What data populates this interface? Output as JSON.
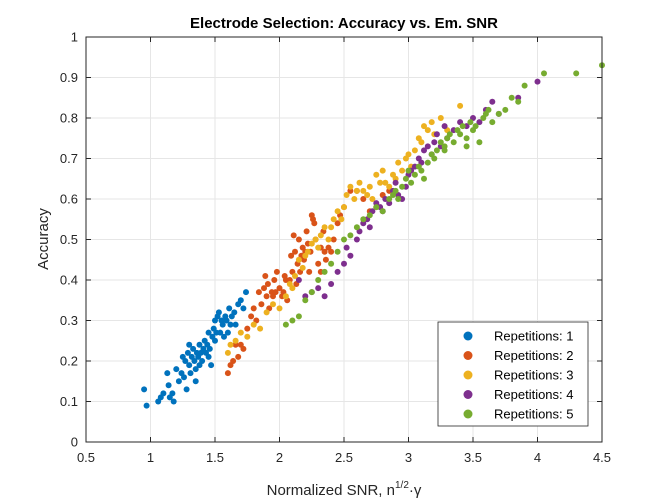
{
  "chart_data": {
    "type": "scatter",
    "title": "Electrode Selection: Accuracy vs. Em. SNR",
    "xlabel_main": "Normalized SNR, n",
    "xlabel_sup": "1/2",
    "xlabel_tail": "·γ",
    "ylabel": "Accuracy",
    "xlim": [
      0.5,
      4.5
    ],
    "ylim": [
      0,
      1
    ],
    "xticks": [
      "0.5",
      "1",
      "1.5",
      "2",
      "2.5",
      "3",
      "3.5",
      "4",
      "4.5"
    ],
    "yticks": [
      "0",
      "0.1",
      "0.2",
      "0.3",
      "0.4",
      "0.5",
      "0.6",
      "0.7",
      "0.8",
      "0.9",
      "1"
    ],
    "grid": true,
    "legend_position": "bottom-right",
    "series": [
      {
        "name": "Repetitions: 1",
        "color": "#0072BD",
        "points": [
          [
            0.95,
            0.13
          ],
          [
            0.97,
            0.09
          ],
          [
            1.06,
            0.1
          ],
          [
            1.08,
            0.11
          ],
          [
            1.1,
            0.12
          ],
          [
            1.13,
            0.17
          ],
          [
            1.14,
            0.14
          ],
          [
            1.15,
            0.11
          ],
          [
            1.17,
            0.12
          ],
          [
            1.18,
            0.1
          ],
          [
            1.2,
            0.18
          ],
          [
            1.22,
            0.15
          ],
          [
            1.24,
            0.17
          ],
          [
            1.25,
            0.21
          ],
          [
            1.26,
            0.16
          ],
          [
            1.27,
            0.2
          ],
          [
            1.28,
            0.13
          ],
          [
            1.29,
            0.22
          ],
          [
            1.3,
            0.19
          ],
          [
            1.31,
            0.17
          ],
          [
            1.32,
            0.21
          ],
          [
            1.33,
            0.23
          ],
          [
            1.34,
            0.2
          ],
          [
            1.35,
            0.18
          ],
          [
            1.36,
            0.22
          ],
          [
            1.37,
            0.21
          ],
          [
            1.38,
            0.24
          ],
          [
            1.39,
            0.22
          ],
          [
            1.4,
            0.2
          ],
          [
            1.41,
            0.23
          ],
          [
            1.42,
            0.25
          ],
          [
            1.43,
            0.22
          ],
          [
            1.44,
            0.24
          ],
          [
            1.45,
            0.21
          ],
          [
            1.46,
            0.23
          ],
          [
            1.47,
            0.19
          ],
          [
            1.48,
            0.26
          ],
          [
            1.49,
            0.28
          ],
          [
            1.5,
            0.3
          ],
          [
            1.51,
            0.27
          ],
          [
            1.52,
            0.31
          ],
          [
            1.53,
            0.32
          ],
          [
            1.54,
            0.27
          ],
          [
            1.55,
            0.3
          ],
          [
            1.56,
            0.29
          ],
          [
            1.57,
            0.26
          ],
          [
            1.58,
            0.31
          ],
          [
            1.59,
            0.3
          ],
          [
            1.6,
            0.27
          ],
          [
            1.61,
            0.33
          ],
          [
            1.62,
            0.29
          ],
          [
            1.63,
            0.31
          ],
          [
            1.65,
            0.32
          ],
          [
            1.66,
            0.29
          ],
          [
            1.68,
            0.34
          ],
          [
            1.7,
            0.35
          ],
          [
            1.72,
            0.33
          ],
          [
            1.74,
            0.37
          ],
          [
            1.5,
            0.25
          ],
          [
            1.45,
            0.27
          ],
          [
            1.38,
            0.19
          ],
          [
            1.35,
            0.15
          ],
          [
            1.3,
            0.24
          ]
        ]
      },
      {
        "name": "Repetitions: 2",
        "color": "#D95319",
        "points": [
          [
            1.6,
            0.17
          ],
          [
            1.62,
            0.19
          ],
          [
            1.64,
            0.2
          ],
          [
            1.66,
            0.24
          ],
          [
            1.68,
            0.21
          ],
          [
            1.7,
            0.24
          ],
          [
            1.72,
            0.23
          ],
          [
            1.75,
            0.28
          ],
          [
            1.78,
            0.31
          ],
          [
            1.8,
            0.33
          ],
          [
            1.82,
            0.3
          ],
          [
            1.84,
            0.37
          ],
          [
            1.86,
            0.34
          ],
          [
            1.88,
            0.38
          ],
          [
            1.89,
            0.41
          ],
          [
            1.9,
            0.36
          ],
          [
            1.91,
            0.39
          ],
          [
            1.92,
            0.33
          ],
          [
            1.94,
            0.37
          ],
          [
            1.95,
            0.36
          ],
          [
            1.96,
            0.4
          ],
          [
            1.97,
            0.37
          ],
          [
            1.98,
            0.42
          ],
          [
            2.0,
            0.38
          ],
          [
            2.02,
            0.36
          ],
          [
            2.03,
            0.37
          ],
          [
            2.04,
            0.41
          ],
          [
            2.05,
            0.4
          ],
          [
            2.06,
            0.35
          ],
          [
            2.08,
            0.4
          ],
          [
            2.09,
            0.46
          ],
          [
            2.1,
            0.42
          ],
          [
            2.11,
            0.51
          ],
          [
            2.12,
            0.47
          ],
          [
            2.13,
            0.39
          ],
          [
            2.14,
            0.44
          ],
          [
            2.15,
            0.5
          ],
          [
            2.16,
            0.42
          ],
          [
            2.17,
            0.46
          ],
          [
            2.18,
            0.48
          ],
          [
            2.19,
            0.45
          ],
          [
            2.2,
            0.47
          ],
          [
            2.21,
            0.52
          ],
          [
            2.22,
            0.49
          ],
          [
            2.23,
            0.42
          ],
          [
            2.24,
            0.47
          ],
          [
            2.25,
            0.56
          ],
          [
            2.26,
            0.55
          ],
          [
            2.27,
            0.54
          ],
          [
            2.28,
            0.5
          ],
          [
            2.3,
            0.44
          ],
          [
            2.32,
            0.48
          ],
          [
            2.34,
            0.52
          ],
          [
            2.35,
            0.47
          ],
          [
            2.36,
            0.45
          ],
          [
            2.38,
            0.48
          ],
          [
            2.4,
            0.47
          ],
          [
            2.42,
            0.5
          ],
          [
            2.45,
            0.54
          ],
          [
            2.47,
            0.56
          ],
          [
            2.5,
            0.58
          ],
          [
            2.55,
            0.62
          ],
          [
            2.6,
            0.62
          ],
          [
            2.65,
            0.6
          ],
          [
            2.7,
            0.57
          ],
          [
            2.75,
            0.58
          ],
          [
            2.8,
            0.61
          ],
          [
            2.85,
            0.62
          ],
          [
            2.32,
            0.42
          ]
        ]
      },
      {
        "name": "Repetitions: 3",
        "color": "#EDB120",
        "points": [
          [
            1.6,
            0.22
          ],
          [
            1.62,
            0.24
          ],
          [
            1.66,
            0.25
          ],
          [
            1.7,
            0.27
          ],
          [
            1.75,
            0.26
          ],
          [
            1.8,
            0.29
          ],
          [
            1.85,
            0.28
          ],
          [
            1.9,
            0.32
          ],
          [
            1.95,
            0.34
          ],
          [
            2.0,
            0.33
          ],
          [
            2.05,
            0.36
          ],
          [
            2.08,
            0.39
          ],
          [
            2.1,
            0.38
          ],
          [
            2.12,
            0.41
          ],
          [
            2.15,
            0.45
          ],
          [
            2.18,
            0.43
          ],
          [
            2.2,
            0.46
          ],
          [
            2.22,
            0.47
          ],
          [
            2.25,
            0.49
          ],
          [
            2.28,
            0.5
          ],
          [
            2.3,
            0.48
          ],
          [
            2.32,
            0.51
          ],
          [
            2.35,
            0.53
          ],
          [
            2.38,
            0.5
          ],
          [
            2.4,
            0.53
          ],
          [
            2.42,
            0.55
          ],
          [
            2.45,
            0.57
          ],
          [
            2.48,
            0.55
          ],
          [
            2.5,
            0.58
          ],
          [
            2.52,
            0.61
          ],
          [
            2.55,
            0.63
          ],
          [
            2.58,
            0.6
          ],
          [
            2.6,
            0.62
          ],
          [
            2.62,
            0.64
          ],
          [
            2.65,
            0.62
          ],
          [
            2.68,
            0.61
          ],
          [
            2.7,
            0.63
          ],
          [
            2.72,
            0.6
          ],
          [
            2.75,
            0.66
          ],
          [
            2.78,
            0.64
          ],
          [
            2.8,
            0.67
          ],
          [
            2.82,
            0.64
          ],
          [
            2.85,
            0.63
          ],
          [
            2.88,
            0.66
          ],
          [
            2.9,
            0.65
          ],
          [
            2.92,
            0.69
          ],
          [
            2.95,
            0.67
          ],
          [
            2.98,
            0.7
          ],
          [
            3.0,
            0.71
          ],
          [
            3.02,
            0.68
          ],
          [
            3.05,
            0.72
          ],
          [
            3.08,
            0.75
          ],
          [
            3.1,
            0.74
          ],
          [
            3.12,
            0.78
          ],
          [
            3.15,
            0.77
          ],
          [
            3.18,
            0.79
          ],
          [
            3.2,
            0.76
          ],
          [
            3.25,
            0.8
          ],
          [
            3.3,
            0.77
          ],
          [
            3.4,
            0.83
          ]
        ]
      },
      {
        "name": "Repetitions: 4",
        "color": "#7E2F8E",
        "points": [
          [
            2.15,
            0.4
          ],
          [
            2.2,
            0.36
          ],
          [
            2.25,
            0.37
          ],
          [
            2.3,
            0.38
          ],
          [
            2.35,
            0.36
          ],
          [
            2.4,
            0.39
          ],
          [
            2.45,
            0.42
          ],
          [
            2.5,
            0.44
          ],
          [
            2.52,
            0.48
          ],
          [
            2.55,
            0.46
          ],
          [
            2.6,
            0.5
          ],
          [
            2.62,
            0.52
          ],
          [
            2.65,
            0.54
          ],
          [
            2.68,
            0.55
          ],
          [
            2.7,
            0.53
          ],
          [
            2.72,
            0.57
          ],
          [
            2.75,
            0.59
          ],
          [
            2.78,
            0.58
          ],
          [
            2.8,
            0.57
          ],
          [
            2.82,
            0.6
          ],
          [
            2.85,
            0.59
          ],
          [
            2.88,
            0.62
          ],
          [
            2.9,
            0.64
          ],
          [
            2.92,
            0.61
          ],
          [
            2.95,
            0.6
          ],
          [
            2.98,
            0.63
          ],
          [
            3.0,
            0.66
          ],
          [
            3.02,
            0.67
          ],
          [
            3.05,
            0.68
          ],
          [
            3.08,
            0.7
          ],
          [
            3.1,
            0.69
          ],
          [
            3.12,
            0.72
          ],
          [
            3.15,
            0.73
          ],
          [
            3.18,
            0.71
          ],
          [
            3.2,
            0.74
          ],
          [
            3.22,
            0.76
          ],
          [
            3.25,
            0.73
          ],
          [
            3.28,
            0.78
          ],
          [
            3.3,
            0.75
          ],
          [
            3.35,
            0.77
          ],
          [
            3.4,
            0.79
          ],
          [
            3.45,
            0.78
          ],
          [
            3.5,
            0.8
          ],
          [
            3.55,
            0.79
          ],
          [
            3.6,
            0.82
          ],
          [
            3.65,
            0.84
          ],
          [
            3.7,
            0.81
          ],
          [
            3.85,
            0.85
          ],
          [
            4.0,
            0.89
          ]
        ]
      },
      {
        "name": "Repetitions: 5",
        "color": "#77AC30",
        "points": [
          [
            2.05,
            0.29
          ],
          [
            2.1,
            0.3
          ],
          [
            2.15,
            0.31
          ],
          [
            2.2,
            0.35
          ],
          [
            2.25,
            0.37
          ],
          [
            2.3,
            0.4
          ],
          [
            2.35,
            0.42
          ],
          [
            2.4,
            0.44
          ],
          [
            2.45,
            0.47
          ],
          [
            2.5,
            0.5
          ],
          [
            2.55,
            0.51
          ],
          [
            2.6,
            0.53
          ],
          [
            2.65,
            0.55
          ],
          [
            2.7,
            0.56
          ],
          [
            2.75,
            0.58
          ],
          [
            2.8,
            0.57
          ],
          [
            2.85,
            0.6
          ],
          [
            2.88,
            0.61
          ],
          [
            2.9,
            0.62
          ],
          [
            2.92,
            0.6
          ],
          [
            2.95,
            0.63
          ],
          [
            2.98,
            0.65
          ],
          [
            3.0,
            0.67
          ],
          [
            3.02,
            0.64
          ],
          [
            3.05,
            0.66
          ],
          [
            3.08,
            0.68
          ],
          [
            3.1,
            0.67
          ],
          [
            3.12,
            0.65
          ],
          [
            3.15,
            0.69
          ],
          [
            3.18,
            0.71
          ],
          [
            3.2,
            0.7
          ],
          [
            3.22,
            0.72
          ],
          [
            3.25,
            0.74
          ],
          [
            3.28,
            0.73
          ],
          [
            3.3,
            0.75
          ],
          [
            3.32,
            0.76
          ],
          [
            3.35,
            0.74
          ],
          [
            3.38,
            0.77
          ],
          [
            3.4,
            0.76
          ],
          [
            3.42,
            0.78
          ],
          [
            3.45,
            0.75
          ],
          [
            3.48,
            0.79
          ],
          [
            3.5,
            0.77
          ],
          [
            3.52,
            0.78
          ],
          [
            3.55,
            0.74
          ],
          [
            3.58,
            0.8
          ],
          [
            3.6,
            0.81
          ],
          [
            3.62,
            0.82
          ],
          [
            3.65,
            0.79
          ],
          [
            3.7,
            0.81
          ],
          [
            3.75,
            0.82
          ],
          [
            3.8,
            0.85
          ],
          [
            3.85,
            0.84
          ],
          [
            3.9,
            0.88
          ],
          [
            4.05,
            0.91
          ],
          [
            4.3,
            0.91
          ],
          [
            4.5,
            0.93
          ],
          [
            3.45,
            0.73
          ],
          [
            3.28,
            0.72
          ]
        ]
      }
    ]
  }
}
